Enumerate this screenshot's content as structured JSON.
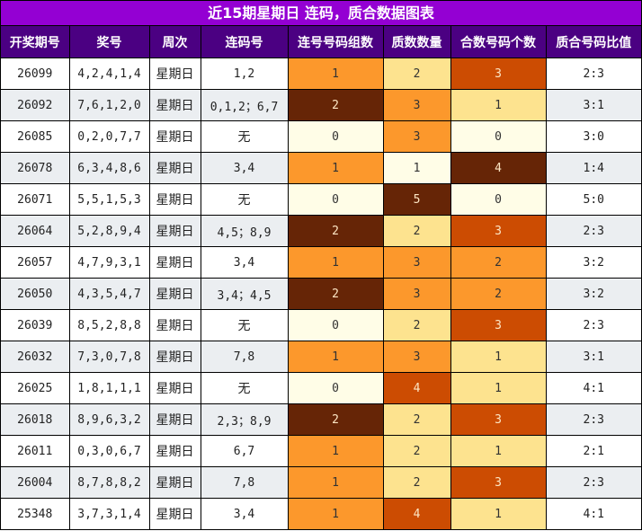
{
  "title": "近15期星期日 连码，质合数据图表",
  "headers": [
    "开奖期号",
    "奖号",
    "周次",
    "连码号",
    "连号号码组数",
    "质数数量",
    "合数号码个数",
    "质合号码比值"
  ],
  "colors": {
    "header_title_bg": "#9400d3",
    "header_row_bg": "#4b0082",
    "heat_levels": [
      "#fffde7",
      "#fde38f",
      "#fc982c",
      "#cc4c02",
      "#662506"
    ],
    "row_alt_bg": "#ebeef1"
  },
  "rows": [
    {
      "period": "26099",
      "numbers": "4,2,4,1,4",
      "weekday": "星期日",
      "consecutive": "1,2",
      "consec_groups": "1",
      "primes": "2",
      "composites": "3",
      "ratio": "2:3",
      "levels": [
        2,
        1,
        3
      ]
    },
    {
      "period": "26092",
      "numbers": "7,6,1,2,0",
      "weekday": "星期日",
      "consecutive": "0,1,2；6,7",
      "consec_groups": "2",
      "primes": "3",
      "composites": "1",
      "ratio": "3:1",
      "levels": [
        4,
        2,
        1
      ]
    },
    {
      "period": "26085",
      "numbers": "0,2,0,7,7",
      "weekday": "星期日",
      "consecutive": "无",
      "consec_groups": "0",
      "primes": "3",
      "composites": "0",
      "ratio": "3:0",
      "levels": [
        0,
        2,
        0
      ]
    },
    {
      "period": "26078",
      "numbers": "6,3,4,8,6",
      "weekday": "星期日",
      "consecutive": "3,4",
      "consec_groups": "1",
      "primes": "1",
      "composites": "4",
      "ratio": "1:4",
      "levels": [
        2,
        0,
        4
      ]
    },
    {
      "period": "26071",
      "numbers": "5,5,1,5,3",
      "weekday": "星期日",
      "consecutive": "无",
      "consec_groups": "0",
      "primes": "5",
      "composites": "0",
      "ratio": "5:0",
      "levels": [
        0,
        4,
        0
      ]
    },
    {
      "period": "26064",
      "numbers": "5,2,8,9,4",
      "weekday": "星期日",
      "consecutive": "4,5；8,9",
      "consec_groups": "2",
      "primes": "2",
      "composites": "3",
      "ratio": "2:3",
      "levels": [
        4,
        1,
        3
      ]
    },
    {
      "period": "26057",
      "numbers": "4,7,9,3,1",
      "weekday": "星期日",
      "consecutive": "3,4",
      "consec_groups": "1",
      "primes": "3",
      "composites": "2",
      "ratio": "3:2",
      "levels": [
        2,
        2,
        2
      ]
    },
    {
      "period": "26050",
      "numbers": "4,3,5,4,7",
      "weekday": "星期日",
      "consecutive": "3,4；4,5",
      "consec_groups": "2",
      "primes": "3",
      "composites": "2",
      "ratio": "3:2",
      "levels": [
        4,
        2,
        2
      ]
    },
    {
      "period": "26039",
      "numbers": "8,5,2,8,8",
      "weekday": "星期日",
      "consecutive": "无",
      "consec_groups": "0",
      "primes": "2",
      "composites": "3",
      "ratio": "2:3",
      "levels": [
        0,
        1,
        3
      ]
    },
    {
      "period": "26032",
      "numbers": "7,3,0,7,8",
      "weekday": "星期日",
      "consecutive": "7,8",
      "consec_groups": "1",
      "primes": "3",
      "composites": "1",
      "ratio": "3:1",
      "levels": [
        2,
        2,
        1
      ]
    },
    {
      "period": "26025",
      "numbers": "1,8,1,1,1",
      "weekday": "星期日",
      "consecutive": "无",
      "consec_groups": "0",
      "primes": "4",
      "composites": "1",
      "ratio": "4:1",
      "levels": [
        0,
        3,
        1
      ]
    },
    {
      "period": "26018",
      "numbers": "8,9,6,3,2",
      "weekday": "星期日",
      "consecutive": "2,3；8,9",
      "consec_groups": "2",
      "primes": "2",
      "composites": "3",
      "ratio": "2:3",
      "levels": [
        4,
        1,
        3
      ]
    },
    {
      "period": "26011",
      "numbers": "0,3,0,6,7",
      "weekday": "星期日",
      "consecutive": "6,7",
      "consec_groups": "1",
      "primes": "2",
      "composites": "1",
      "ratio": "2:1",
      "levels": [
        2,
        1,
        1
      ]
    },
    {
      "period": "26004",
      "numbers": "8,7,8,8,2",
      "weekday": "星期日",
      "consecutive": "7,8",
      "consec_groups": "1",
      "primes": "2",
      "composites": "3",
      "ratio": "2:3",
      "levels": [
        2,
        1,
        3
      ]
    },
    {
      "period": "25348",
      "numbers": "3,7,3,1,4",
      "weekday": "星期日",
      "consecutive": "3,4",
      "consec_groups": "1",
      "primes": "4",
      "composites": "1",
      "ratio": "4:1",
      "levels": [
        2,
        3,
        1
      ]
    }
  ],
  "chart_data": {
    "type": "table",
    "title": "近15期星期日 连码，质合数据图表",
    "columns": [
      "开奖期号",
      "奖号",
      "周次",
      "连码号",
      "连号号码组数",
      "质数数量",
      "合数号码个数",
      "质合号码比值"
    ],
    "categories": [
      "26099",
      "26092",
      "26085",
      "26078",
      "26071",
      "26064",
      "26057",
      "26050",
      "26039",
      "26032",
      "26025",
      "26018",
      "26011",
      "26004",
      "25348"
    ],
    "series": [
      {
        "name": "连号号码组数",
        "values": [
          1,
          2,
          0,
          1,
          0,
          2,
          1,
          2,
          0,
          1,
          0,
          2,
          1,
          1,
          1
        ]
      },
      {
        "name": "质数数量",
        "values": [
          2,
          3,
          3,
          1,
          5,
          2,
          3,
          3,
          2,
          3,
          4,
          2,
          2,
          2,
          4
        ]
      },
      {
        "name": "合数号码个数",
        "values": [
          3,
          1,
          0,
          4,
          0,
          3,
          2,
          2,
          3,
          1,
          1,
          3,
          1,
          3,
          1
        ]
      }
    ],
    "ratios": [
      "2:3",
      "3:1",
      "3:0",
      "1:4",
      "5:0",
      "2:3",
      "3:2",
      "3:2",
      "2:3",
      "3:1",
      "4:1",
      "2:3",
      "2:1",
      "2:3",
      "4:1"
    ]
  }
}
